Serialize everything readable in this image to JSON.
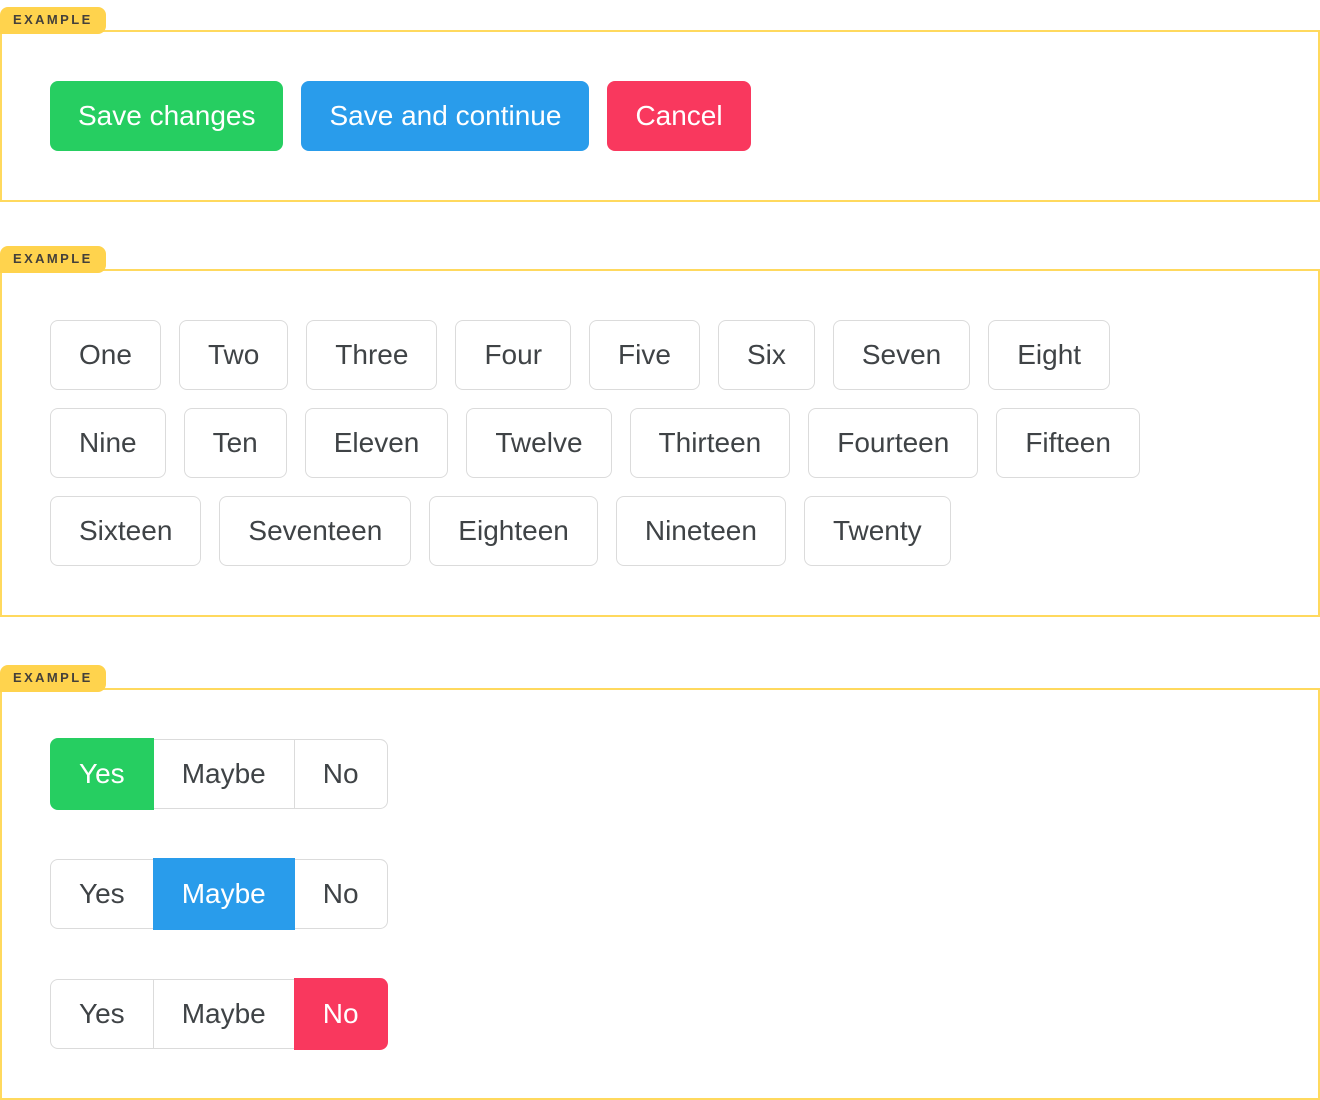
{
  "colors": {
    "green": "#26CE61",
    "blue": "#299CEB",
    "red": "#F9385E",
    "tab_background": "#FFD34D",
    "box_border": "#FFD95E",
    "plain_button_border": "#DBDBDB",
    "plain_button_text": "#3F4346",
    "tab_text": "#44403A"
  },
  "sections": [
    {
      "label": "EXAMPLE",
      "buttons": [
        {
          "label": "Save changes",
          "variant": "green"
        },
        {
          "label": "Save and continue",
          "variant": "blue"
        },
        {
          "label": "Cancel",
          "variant": "red"
        }
      ]
    },
    {
      "label": "EXAMPLE",
      "rows": [
        [
          "One",
          "Two",
          "Three",
          "Four",
          "Five",
          "Six",
          "Seven",
          "Eight"
        ],
        [
          "Nine",
          "Ten",
          "Eleven",
          "Twelve",
          "Thirteen",
          "Fourteen",
          "Fifteen"
        ],
        [
          "Sixteen",
          "Seventeen",
          "Eighteen",
          "Nineteen",
          "Twenty"
        ]
      ]
    },
    {
      "label": "EXAMPLE",
      "groups": [
        {
          "options": [
            "Yes",
            "Maybe",
            "No"
          ],
          "active": "Yes",
          "active_variant": "green"
        },
        {
          "options": [
            "Yes",
            "Maybe",
            "No"
          ],
          "active": "Maybe",
          "active_variant": "blue"
        },
        {
          "options": [
            "Yes",
            "Maybe",
            "No"
          ],
          "active": "No",
          "active_variant": "red"
        }
      ]
    }
  ]
}
